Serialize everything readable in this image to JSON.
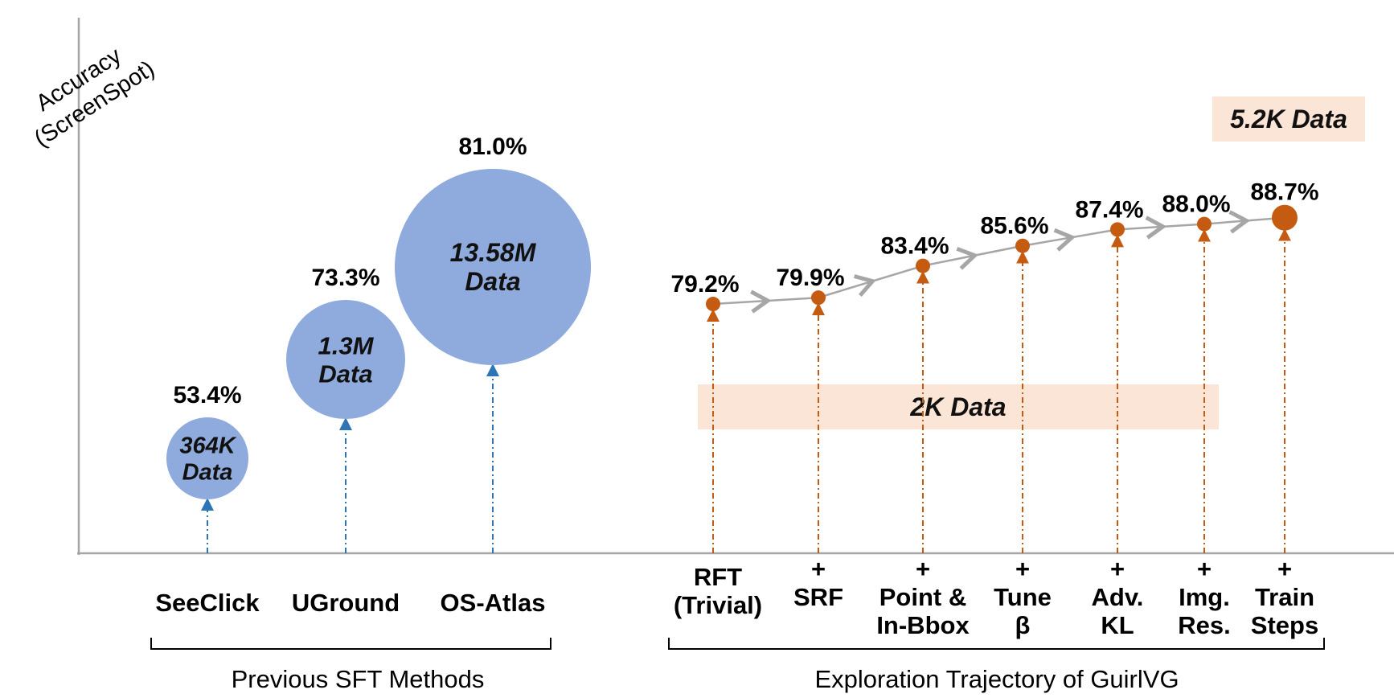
{
  "chart_data": {
    "type": "scatter",
    "ylabel": [
      "Accuracy",
      "(ScreenSpot)"
    ],
    "colors": {
      "sft_bubble": "#8FAADC",
      "trajectory_point": "#C55A11",
      "trajectory_line": "#A6A6A6",
      "band_fill": "#FBE5D6",
      "axis": "#A6A6A6",
      "sft_dash": "#2E75B6"
    },
    "sft": {
      "group_label": "Previous SFT Methods",
      "points": [
        {
          "name": "SeeClick",
          "accuracy": 53.4,
          "label": "53.4%",
          "data": [
            "364K",
            "Data"
          ]
        },
        {
          "name": "UGround",
          "accuracy": 73.3,
          "label": "73.3%",
          "data": [
            "1.3M",
            "Data"
          ]
        },
        {
          "name": "OS-Atlas",
          "accuracy": 81.0,
          "label": "81.0%",
          "data": [
            "13.58M",
            "Data"
          ]
        }
      ]
    },
    "trajectory": {
      "group_label": "Exploration Trajectory of GuirlVG",
      "points": [
        {
          "name": [
            "RFT",
            "(Trivial)"
          ],
          "accuracy": 79.2,
          "label": "79.2%"
        },
        {
          "name": [
            "+",
            "SRF"
          ],
          "accuracy": 79.9,
          "label": "79.9%"
        },
        {
          "name": [
            "+",
            "Point &",
            "In-Bbox"
          ],
          "accuracy": 83.4,
          "label": "83.4%"
        },
        {
          "name": [
            "+",
            "Tune",
            "β"
          ],
          "accuracy": 85.6,
          "label": "85.6%"
        },
        {
          "name": [
            "+",
            "Adv.",
            "KL"
          ],
          "accuracy": 87.4,
          "label": "87.4%"
        },
        {
          "name": [
            "+",
            "Img.",
            "Res."
          ],
          "accuracy": 88.0,
          "label": "88.0%"
        },
        {
          "name": [
            "+",
            "Train",
            "Steps"
          ],
          "accuracy": 88.7,
          "label": "88.7%"
        }
      ],
      "bands": [
        {
          "label": "2K  Data",
          "from_index": 0,
          "to_index": 5
        },
        {
          "label": "5.2K Data",
          "from_index": 5,
          "to_index": 6
        }
      ]
    }
  }
}
